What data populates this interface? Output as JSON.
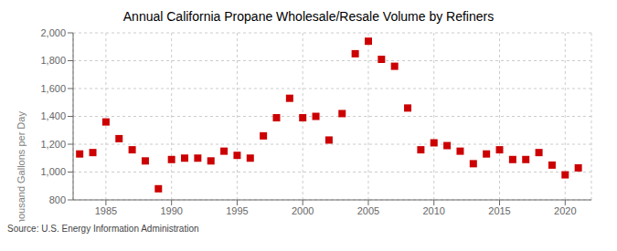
{
  "chart_data": {
    "type": "scatter",
    "title": "Annual California Propane Wholesale/Resale Volume by Refiners",
    "y_label": "Thousand Gallons per Day",
    "annotations": [
      "Source: U.S. Energy Information Administration"
    ],
    "x": [
      1983,
      1984,
      1985,
      1986,
      1987,
      1988,
      1989,
      1990,
      1991,
      1992,
      1993,
      1994,
      1995,
      1996,
      1997,
      1998,
      1999,
      2000,
      2001,
      2002,
      2003,
      2004,
      2005,
      2006,
      2007,
      2008,
      2009,
      2010,
      2011,
      2012,
      2013,
      2014,
      2015,
      2016,
      2017,
      2018,
      2019,
      2020,
      2021
    ],
    "values": [
      1130,
      1140,
      1360,
      1240,
      1160,
      1080,
      880,
      1090,
      1100,
      1100,
      1080,
      1150,
      1120,
      1100,
      1260,
      1390,
      1530,
      1390,
      1400,
      1230,
      1420,
      1850,
      1940,
      1810,
      1760,
      1460,
      1160,
      1210,
      1190,
      1150,
      1060,
      1130,
      1160,
      1090,
      1090,
      1140,
      1050,
      980,
      1030
    ],
    "color": "#cc0000",
    "marker": "square",
    "xlim": [
      1982.5,
      2022
    ],
    "xticks": [
      1985,
      1990,
      1995,
      2000,
      2005,
      2010,
      2015,
      2020
    ],
    "ylim": [
      800,
      2000
    ],
    "yticks": [
      800,
      {
        "value": 1000,
        "label": "1,000"
      },
      {
        "value": 1200,
        "label": "1,200"
      },
      {
        "value": 1400,
        "label": "1,400"
      },
      {
        "value": 1600,
        "label": "1,600"
      },
      {
        "value": 1800,
        "label": "1,800"
      },
      {
        "value": 2000,
        "label": "2,000"
      }
    ],
    "grid": true
  }
}
